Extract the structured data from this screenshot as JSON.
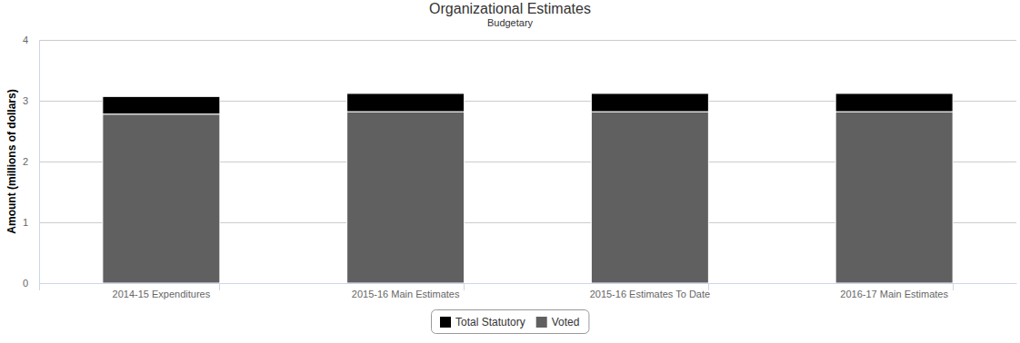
{
  "chart_data": {
    "type": "bar",
    "title": "Organizational Estimates",
    "subtitle": "Budgetary",
    "y_label": "Amount (millions of dollars)",
    "categories": [
      "2014-15 Expenditures",
      "2015-16 Main Estimates",
      "2015-16 Estimates To Date",
      "2016-17 Main Estimates"
    ],
    "series": [
      {
        "name": "Total Statutory",
        "color": "#000000",
        "values": [
          0.29,
          0.3,
          0.3,
          0.3
        ]
      },
      {
        "name": "Voted",
        "color": "#606060",
        "values": [
          2.78,
          2.82,
          2.82,
          2.82
        ]
      }
    ],
    "stacked": true,
    "ylim": [
      0,
      4
    ],
    "yticks": [
      0,
      1,
      2,
      3,
      4
    ],
    "grid": true,
    "legend": "bottom"
  }
}
